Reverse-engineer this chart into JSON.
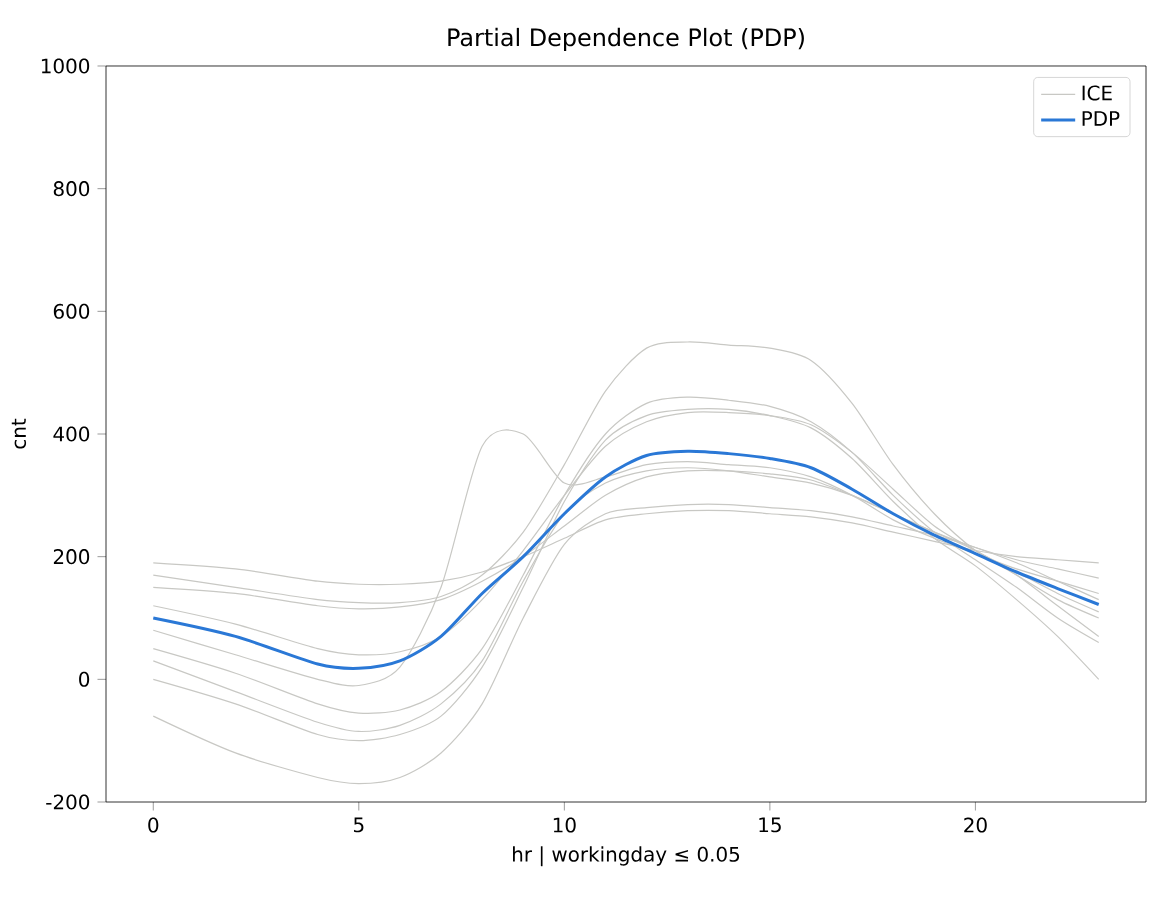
{
  "chart_data": {
    "type": "line",
    "title": "Partial Dependence Plot (PDP)",
    "xlabel": "hr | workingday ≤ 0.05",
    "ylabel": "cnt",
    "x": [
      0,
      2,
      4,
      5,
      6,
      7,
      8,
      9,
      10,
      11,
      12,
      13,
      14,
      15,
      16,
      17,
      18,
      19,
      20,
      21,
      22,
      23
    ],
    "xlim": [
      -1.15,
      24.15
    ],
    "ylim": [
      -200,
      1000
    ],
    "xticks": [
      0,
      5,
      10,
      15,
      20
    ],
    "yticks": [
      -200,
      0,
      200,
      400,
      600,
      800,
      1000
    ],
    "grid": false,
    "legend": "top right",
    "marker": "none",
    "line_style": "solid",
    "series": [
      {
        "name": "ICE",
        "color": "#c8c8c4",
        "values": [
          170,
          150,
          130,
          125,
          125,
          135,
          170,
          240,
          350,
          470,
          540,
          550,
          545,
          540,
          520,
          450,
          350,
          270,
          210,
          170,
          130,
          100
        ]
      },
      {
        "color": "#c8c8c4",
        "values": [
          -60,
          -120,
          -160,
          -170,
          -160,
          -120,
          -40,
          100,
          220,
          270,
          280,
          285,
          285,
          280,
          275,
          265,
          250,
          235,
          215,
          190,
          160,
          130
        ]
      },
      {
        "color": "#c8c8c4",
        "values": [
          150,
          140,
          120,
          115,
          118,
          130,
          160,
          200,
          250,
          300,
          330,
          340,
          340,
          335,
          325,
          300,
          270,
          240,
          215,
          195,
          180,
          165
        ]
      },
      {
        "color": "#c8c8c4",
        "values": [
          50,
          10,
          -40,
          -55,
          -50,
          -20,
          50,
          170,
          300,
          400,
          450,
          460,
          455,
          445,
          420,
          370,
          300,
          240,
          195,
          150,
          100,
          60
        ]
      },
      {
        "color": "#c8c8c4",
        "values": [
          0,
          -40,
          -90,
          -100,
          -90,
          -60,
          20,
          150,
          290,
          390,
          430,
          440,
          440,
          430,
          410,
          360,
          290,
          230,
          185,
          130,
          70,
          0
        ]
      },
      {
        "color": "#c8c8c4",
        "values": [
          190,
          180,
          160,
          155,
          155,
          160,
          175,
          200,
          230,
          260,
          270,
          275,
          275,
          270,
          265,
          255,
          240,
          225,
          210,
          200,
          195,
          190
        ]
      },
      {
        "color": "#c8c8c4",
        "values": [
          80,
          40,
          0,
          -10,
          20,
          150,
          380,
          400,
          320,
          330,
          350,
          355,
          350,
          345,
          330,
          300,
          260,
          230,
          205,
          180,
          160,
          140
        ]
      },
      {
        "color": "#c8c8c4",
        "values": [
          120,
          90,
          50,
          40,
          45,
          70,
          130,
          210,
          300,
          380,
          420,
          435,
          435,
          430,
          415,
          370,
          310,
          250,
          210,
          175,
          140,
          110
        ]
      },
      {
        "color": "#c8c8c4",
        "values": [
          30,
          -20,
          -70,
          -85,
          -75,
          -40,
          30,
          160,
          270,
          320,
          340,
          345,
          340,
          330,
          320,
          300,
          270,
          240,
          210,
          170,
          120,
          70
        ]
      },
      {
        "name": "PDP",
        "color": "#2a78d6",
        "values": [
          100,
          70,
          25,
          18,
          30,
          70,
          140,
          200,
          270,
          330,
          365,
          372,
          368,
          360,
          345,
          310,
          270,
          235,
          205,
          175,
          148,
          122
        ]
      }
    ]
  }
}
